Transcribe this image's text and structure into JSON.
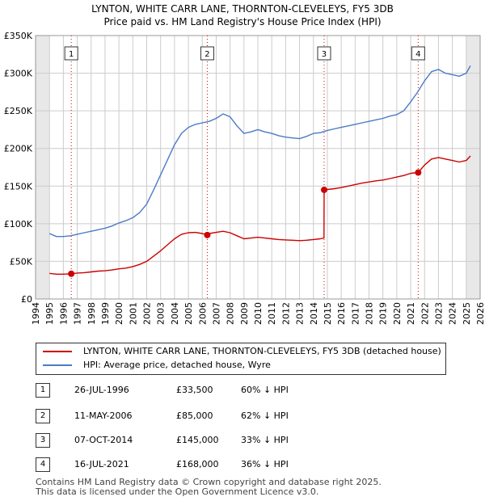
{
  "colors": {
    "property_line": "#cc0000",
    "hpi_line": "#4a7bc4",
    "grid": "#cccccc",
    "shade": "#e8e8e8",
    "marker_line": "#cc0000"
  },
  "title_line1": "LYNTON, WHITE CARR LANE, THORNTON-CLEVELEYS, FY5 3DB",
  "title_line2": "Price paid vs. HM Land Registry's House Price Index (HPI)",
  "legend": {
    "property": "LYNTON, WHITE CARR LANE, THORNTON-CLEVELEYS, FY5 3DB (detached house)",
    "hpi": "HPI: Average price, detached house, Wyre"
  },
  "sales": [
    {
      "num": "1",
      "date": "26-JUL-1996",
      "price": "£33,500",
      "diff": "60% ↓ HPI"
    },
    {
      "num": "2",
      "date": "11-MAY-2006",
      "price": "£85,000",
      "diff": "62% ↓ HPI"
    },
    {
      "num": "3",
      "date": "07-OCT-2014",
      "price": "£145,000",
      "diff": "33% ↓ HPI"
    },
    {
      "num": "4",
      "date": "16-JUL-2021",
      "price": "£168,000",
      "diff": "36% ↓ HPI"
    }
  ],
  "footer_line1": "Contains HM Land Registry data © Crown copyright and database right 2025.",
  "footer_line2": "This data is licensed under the Open Government Licence v3.0.",
  "chart_data": {
    "type": "line",
    "title": "Price paid vs. HM Land Registry's House Price Index (HPI)",
    "xlim": [
      1994,
      2026
    ],
    "ylim": [
      0,
      350000
    ],
    "x_ticks": [
      1994,
      1995,
      1996,
      1997,
      1998,
      1999,
      2000,
      2001,
      2002,
      2003,
      2004,
      2005,
      2006,
      2007,
      2008,
      2009,
      2010,
      2011,
      2012,
      2013,
      2014,
      2015,
      2016,
      2017,
      2018,
      2019,
      2020,
      2021,
      2022,
      2023,
      2024,
      2025,
      2026
    ],
    "y_ticks": [
      0,
      50000,
      100000,
      150000,
      200000,
      250000,
      300000,
      350000
    ],
    "y_tick_labels": [
      "£0",
      "£50K",
      "£100K",
      "£150K",
      "£200K",
      "£250K",
      "£300K",
      "£350K"
    ],
    "shaded_ranges": [
      [
        1994,
        1995
      ],
      [
        2025,
        2026
      ]
    ],
    "sale_markers": [
      {
        "label": "1",
        "x": 1996.57,
        "y": 33500
      },
      {
        "label": "2",
        "x": 2006.36,
        "y": 85000
      },
      {
        "label": "3",
        "x": 2014.77,
        "y": 145000
      },
      {
        "label": "4",
        "x": 2021.54,
        "y": 168000
      }
    ],
    "series": [
      {
        "name": "HPI: Average price, detached house, Wyre",
        "x": [
          1995.0,
          1995.5,
          1996.0,
          1996.5,
          1997.0,
          1997.5,
          1998.0,
          1998.5,
          1999.0,
          1999.5,
          2000.0,
          2000.5,
          2001.0,
          2001.5,
          2002.0,
          2002.5,
          2003.0,
          2003.5,
          2004.0,
          2004.5,
          2005.0,
          2005.5,
          2006.0,
          2006.5,
          2007.0,
          2007.5,
          2008.0,
          2008.5,
          2009.0,
          2009.5,
          2010.0,
          2010.5,
          2011.0,
          2011.5,
          2012.0,
          2012.5,
          2013.0,
          2013.5,
          2014.0,
          2014.5,
          2015.0,
          2015.5,
          2016.0,
          2016.5,
          2017.0,
          2017.5,
          2018.0,
          2018.5,
          2019.0,
          2019.5,
          2020.0,
          2020.5,
          2021.0,
          2021.5,
          2022.0,
          2022.5,
          2023.0,
          2023.5,
          2024.0,
          2024.5,
          2025.0,
          2025.3
        ],
        "values": [
          87000,
          83000,
          83000,
          84000,
          86000,
          88000,
          90000,
          92000,
          94000,
          97000,
          101000,
          104000,
          108000,
          115000,
          126000,
          145000,
          165000,
          185000,
          205000,
          220000,
          228000,
          232000,
          234000,
          236000,
          240000,
          246000,
          242000,
          230000,
          220000,
          222000,
          225000,
          222000,
          220000,
          217000,
          215000,
          214000,
          213000,
          216000,
          220000,
          221000,
          224000,
          226000,
          228000,
          230000,
          232000,
          234000,
          236000,
          238000,
          240000,
          243000,
          245000,
          250000,
          262000,
          275000,
          290000,
          302000,
          305000,
          300000,
          298000,
          296000,
          300000,
          310000
        ]
      },
      {
        "name": "LYNTON, WHITE CARR LANE, THORNTON-CLEVELEYS, FY5 3DB (detached house)",
        "x": [
          1995.0,
          1995.5,
          1996.0,
          1996.57,
          1997.0,
          1997.5,
          1998.0,
          1998.5,
          1999.0,
          1999.5,
          2000.0,
          2000.5,
          2001.0,
          2001.5,
          2002.0,
          2002.5,
          2003.0,
          2003.5,
          2004.0,
          2004.5,
          2005.0,
          2005.5,
          2006.0,
          2006.36,
          2006.5,
          2007.0,
          2007.5,
          2008.0,
          2008.5,
          2009.0,
          2009.5,
          2010.0,
          2010.5,
          2011.0,
          2011.5,
          2012.0,
          2012.5,
          2013.0,
          2013.5,
          2014.0,
          2014.5,
          2014.76,
          2014.77,
          2015.0,
          2015.5,
          2016.0,
          2016.5,
          2017.0,
          2017.5,
          2018.0,
          2018.5,
          2019.0,
          2019.5,
          2020.0,
          2020.5,
          2021.0,
          2021.54,
          2022.0,
          2022.5,
          2023.0,
          2023.5,
          2024.0,
          2024.5,
          2025.0,
          2025.3
        ],
        "values": [
          34000,
          33000,
          33000,
          33500,
          34500,
          35000,
          36000,
          37000,
          37500,
          38500,
          40000,
          41000,
          43000,
          46000,
          50000,
          57000,
          64000,
          72000,
          80000,
          86000,
          88000,
          88500,
          87000,
          85000,
          87000,
          88500,
          90000,
          88000,
          84000,
          80000,
          81000,
          82000,
          81000,
          80000,
          79000,
          78500,
          78000,
          77500,
          78000,
          79000,
          80000,
          81000,
          145000,
          145500,
          146500,
          148000,
          150000,
          152000,
          154000,
          155500,
          157000,
          158000,
          160000,
          162000,
          164000,
          167000,
          168000,
          178000,
          186000,
          188000,
          186000,
          184000,
          182000,
          184000,
          190000
        ]
      }
    ]
  }
}
